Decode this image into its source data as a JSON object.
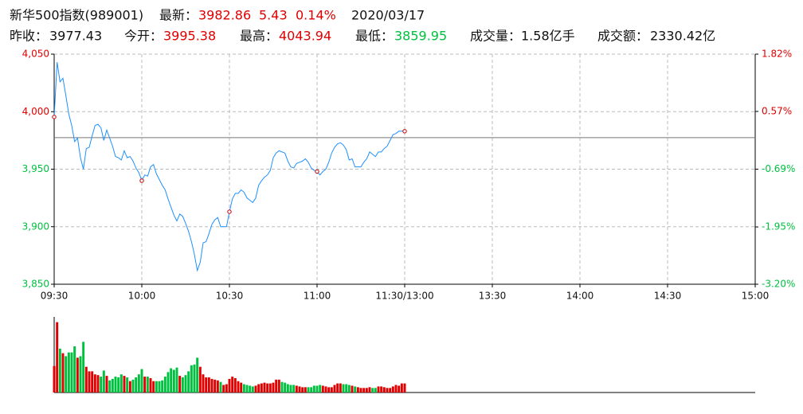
{
  "header": {
    "name": "新华500指数(989001)",
    "latest_label": "最新：",
    "latest": "3982.86",
    "change": "5.43",
    "change_pct": "0.14%",
    "date": "2020/03/17",
    "stats": [
      {
        "label": "昨收：",
        "value": 3977.43
      },
      {
        "label": "今开：",
        "value": 3995.38
      },
      {
        "label": "最高：",
        "value": 4043.94
      },
      {
        "label": "最低：",
        "value": 3859.95
      },
      {
        "label": "成交量：",
        "value": "1.58亿手"
      },
      {
        "label": "成交额：",
        "value": "2330.42亿"
      }
    ]
  },
  "chart_data": [
    {
      "type": "line",
      "xlim": [
        0,
        240
      ],
      "xticks": [
        {
          "value": 0,
          "label": "09:30"
        },
        {
          "value": 30,
          "label": "10:00"
        },
        {
          "value": 60,
          "label": "10:30"
        },
        {
          "value": 90,
          "label": "11:00"
        },
        {
          "value": 120,
          "label": "11:30/13:00"
        },
        {
          "value": 150,
          "label": "13:30"
        },
        {
          "value": 180,
          "label": "14:00"
        },
        {
          "value": 210,
          "label": "14:30"
        },
        {
          "value": 240,
          "label": "15:00"
        }
      ],
      "ylim": [
        3850,
        4050
      ],
      "yticks": [
        {
          "value": 4050,
          "label": "4,050"
        },
        {
          "value": 4000,
          "label": "4,000"
        },
        {
          "value": 3950,
          "label": "3,950"
        },
        {
          "value": 3900,
          "label": "3,900"
        },
        {
          "value": 3850,
          "label": "3,850"
        }
      ],
      "y2lim": [
        -3.2,
        1.82
      ],
      "y2ticks": [
        {
          "value": 1.82,
          "label": "1.82%"
        },
        {
          "value": 0.57,
          "label": "0.57%"
        },
        {
          "value": -0.69,
          "label": "-0.69%"
        },
        {
          "value": -1.95,
          "label": "-1.95%"
        },
        {
          "value": -3.2,
          "label": "-3.20%"
        }
      ],
      "grid": true,
      "up_color": "#e00000",
      "down_color": "#00c040",
      "marker_every": 30,
      "series": [
        {
          "color": "#1e90ff",
          "values": [
            3995.4,
            4043,
            4026,
            4029,
            4014,
            3998,
            3988,
            3974,
            3977,
            3960,
            3950,
            3968,
            3969,
            3979,
            3988,
            3989,
            3986,
            3975,
            3984,
            3977,
            3970,
            3961,
            3960,
            3958,
            3966,
            3960,
            3961,
            3957,
            3951,
            3947,
            3940,
            3945,
            3944,
            3952,
            3954,
            3946,
            3941,
            3936,
            3932,
            3924,
            3917,
            3910,
            3905,
            3911,
            3909,
            3903,
            3896,
            3887,
            3876,
            3862,
            3869,
            3886,
            3887,
            3894,
            3902,
            3906,
            3908,
            3900,
            3900,
            3900,
            3913,
            3924,
            3929,
            3929,
            3932,
            3930,
            3925,
            3923,
            3921,
            3925,
            3936,
            3940,
            3943,
            3945,
            3949,
            3960,
            3964,
            3966,
            3965,
            3964,
            3957,
            3952,
            3951,
            3955,
            3956,
            3957,
            3959,
            3956,
            3951,
            3949,
            3948,
            3945,
            3948,
            3950,
            3956,
            3964,
            3969,
            3972,
            3973,
            3971,
            3967,
            3958,
            3959,
            3952,
            3952,
            3952,
            3956,
            3959,
            3965,
            3963,
            3961,
            3965,
            3965,
            3968,
            3970,
            3975,
            3980,
            3981,
            3983,
            3983,
            3983
          ]
        }
      ]
    },
    {
      "type": "bar",
      "ylim": [
        0,
        100
      ],
      "up_color": "#e00000",
      "down_color": "#00c040",
      "values": [
        35,
        93,
        58,
        52,
        48,
        53,
        53,
        61,
        46,
        48,
        67,
        34,
        28,
        28,
        24,
        23,
        21,
        29,
        22,
        16,
        18,
        21,
        20,
        24,
        22,
        20,
        15,
        17,
        20,
        24,
        31,
        21,
        21,
        19,
        15,
        15,
        15,
        16,
        21,
        27,
        32,
        30,
        33,
        22,
        20,
        23,
        28,
        36,
        37,
        46,
        34,
        24,
        20,
        20,
        18,
        17,
        16,
        14,
        10,
        11,
        18,
        21,
        19,
        15,
        13,
        11,
        10,
        9,
        8,
        9,
        11,
        12,
        13,
        12,
        12,
        13,
        17,
        17,
        14,
        13,
        11,
        10,
        10,
        9,
        8,
        7,
        7,
        7,
        7,
        9,
        9,
        10,
        9,
        8,
        7,
        7,
        10,
        12,
        12,
        11,
        11,
        10,
        9,
        8,
        7,
        6,
        6,
        6,
        7,
        6,
        6,
        8,
        8,
        7,
        6,
        6,
        8,
        10,
        9,
        12,
        12
      ]
    }
  ]
}
